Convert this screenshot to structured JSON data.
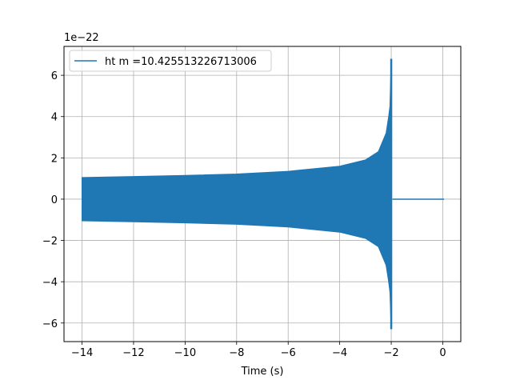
{
  "chart_data": {
    "type": "line",
    "title": "",
    "xlabel": "Time (s)",
    "ylabel": "",
    "y_offset_label": "1e−22",
    "xlim": [
      -14.7,
      0.7
    ],
    "ylim": [
      -6.9,
      7.4
    ],
    "x_ticks": [
      -14,
      -12,
      -10,
      -8,
      -6,
      -4,
      -2,
      0
    ],
    "x_tick_labels": [
      "−14",
      "−12",
      "−10",
      "−8",
      "−6",
      "−4",
      "−2",
      "0"
    ],
    "y_ticks": [
      -6,
      -4,
      -2,
      0,
      2,
      4,
      6
    ],
    "y_tick_labels": [
      "−6",
      "−4",
      "−2",
      "0",
      "2",
      "4",
      "6"
    ],
    "grid": true,
    "legend_position": "top-left",
    "series": [
      {
        "name": "ht m =10.425513226713006",
        "color": "#1f77b4",
        "envelope": {
          "x": [
            -14.0,
            -12.0,
            -10.0,
            -8.0,
            -6.0,
            -4.0,
            -3.0,
            -2.5,
            -2.2,
            -2.1,
            -2.05,
            -2.0
          ],
          "upper": [
            1.05,
            1.1,
            1.15,
            1.22,
            1.35,
            1.6,
            1.9,
            2.3,
            3.2,
            4.0,
            4.5,
            6.8
          ],
          "lower": [
            -1.05,
            -1.1,
            -1.15,
            -1.22,
            -1.35,
            -1.6,
            -1.9,
            -2.3,
            -3.2,
            -4.0,
            -4.5,
            -6.3
          ]
        },
        "ringdown": {
          "x": [
            -1.95,
            0.05
          ],
          "y": [
            0,
            0
          ]
        }
      }
    ]
  }
}
